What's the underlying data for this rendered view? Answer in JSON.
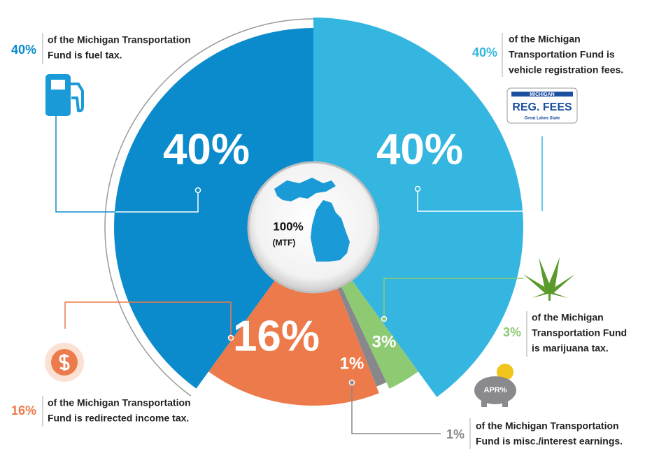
{
  "chart_data": {
    "type": "pie",
    "center_label": "100%",
    "center_sublabel": "(MTF)",
    "values": [
      40,
      3,
      1,
      16,
      40
    ],
    "value_labels": [
      "40%",
      "3%",
      "1%",
      "16%",
      "40%"
    ],
    "colors": [
      "#34b6e0",
      "#8dca72",
      "#88888c",
      "#ec7a4b",
      "#0b8bcb"
    ],
    "descriptions": [
      [
        "of the Michigan",
        "Transportation Fund is",
        "vehicle registration fees."
      ],
      [
        "of the Michigan",
        "Transportation Fund",
        "is marijuana tax."
      ],
      [
        "of the Michigan Transportation",
        "Fund is misc./interest earnings."
      ],
      [
        "of the Michigan Transportation",
        "Fund is redirected income tax."
      ],
      [
        "of the Michigan Transportation",
        "Fund is fuel tax."
      ]
    ],
    "plate": {
      "top": "MICHIGAN",
      "main": "REG. FEES",
      "bottom": "Great Lakes State"
    },
    "piggy": "APR%"
  }
}
